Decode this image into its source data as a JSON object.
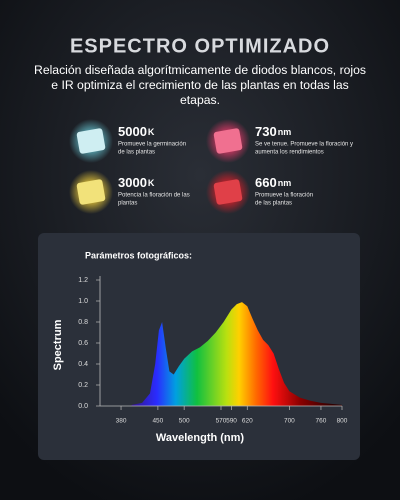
{
  "header": {
    "title": "ESPECTRO OPTIMIZADO",
    "subtitle": [
      "Relación diseñada algorítmicamente de diodos blancos, rojos",
      "e IR optimiza el crecimiento de las plantas en todas las",
      "etapas."
    ]
  },
  "leds": [
    {
      "value": "5000",
      "unit": "K",
      "description": [
        "Promueve la germinación",
        "de las plantas"
      ]
    },
    {
      "value": "730",
      "unit": "nm",
      "description": [
        "Se ve tenue. Promueve la floración y",
        "aumenta los rendimientos"
      ]
    },
    {
      "value": "3000",
      "unit": "K",
      "description": [
        "Potencia la floración de las",
        "plantas"
      ]
    },
    {
      "value": "660",
      "unit": "nm",
      "description": [
        "Promueve la floración",
        "de las plantas"
      ]
    }
  ],
  "chart_data": {
    "type": "area",
    "title": "Parámetros fotográficos:",
    "xlabel": "Wavelength (nm)",
    "ylabel": "Spectrum",
    "x": [
      400,
      420,
      435,
      445,
      452,
      458,
      465,
      472,
      480,
      490,
      500,
      515,
      530,
      545,
      560,
      575,
      590,
      600,
      610,
      620,
      630,
      640,
      650,
      660,
      670,
      680,
      690,
      700,
      720,
      740,
      760,
      780,
      800
    ],
    "values": [
      0.01,
      0.03,
      0.12,
      0.4,
      0.72,
      0.8,
      0.55,
      0.33,
      0.3,
      0.38,
      0.45,
      0.52,
      0.56,
      0.62,
      0.7,
      0.8,
      0.92,
      0.97,
      0.99,
      0.95,
      0.83,
      0.72,
      0.63,
      0.58,
      0.5,
      0.35,
      0.22,
      0.14,
      0.08,
      0.05,
      0.03,
      0.02,
      0.01
    ],
    "xlim": [
      340,
      800
    ],
    "ylim": [
      0,
      1.3
    ],
    "xticks": [
      380,
      450,
      500,
      570,
      590,
      620,
      700,
      760,
      800
    ],
    "yticks": [
      {
        "value": 0,
        "label": "0.0"
      },
      0.2,
      0.4,
      0.6,
      0.8,
      {
        "value": 1,
        "label": "1.0"
      },
      1.2
    ]
  }
}
